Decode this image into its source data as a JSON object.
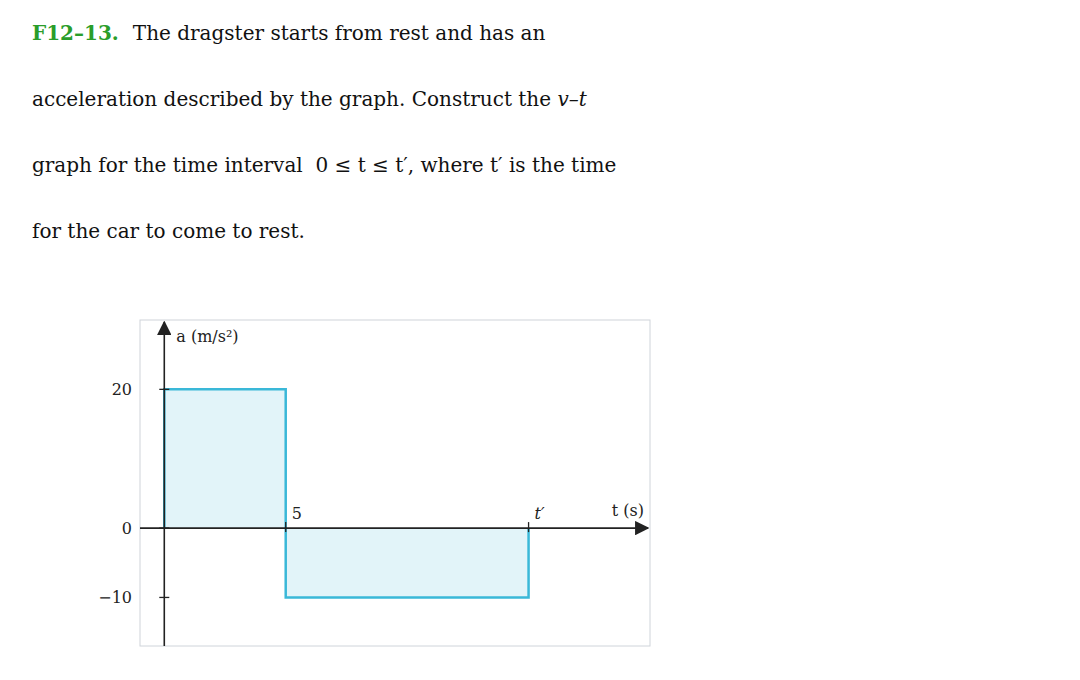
{
  "chart_data": {
    "type": "line",
    "title": "F12–13.",
    "subtitle": [
      [
        "The dragster starts from rest and has an"
      ],
      [
        "acceleration described by the graph. Construct the ",
        "v–t"
      ],
      [
        "graph for the time interval  0 ≤ t ≤ t′, where t′ is the time"
      ],
      [
        "for the car to come to rest."
      ]
    ],
    "xlabel": "t (s)",
    "ylabel": "a (m/s²)",
    "x": [
      0,
      0,
      5,
      5,
      15,
      15
    ],
    "values": [
      0,
      20,
      20,
      -10,
      -10,
      0
    ],
    "color": "#3ab8d8",
    "xlim": [
      -1,
      20
    ],
    "ylim": [
      -17,
      30
    ],
    "xticks": [
      5,
      {
        "value": 15,
        "label": "t′"
      }
    ],
    "yticks": [
      {
        "value": -10,
        "label": "−10"
      },
      0,
      20
    ],
    "grid": false
  }
}
